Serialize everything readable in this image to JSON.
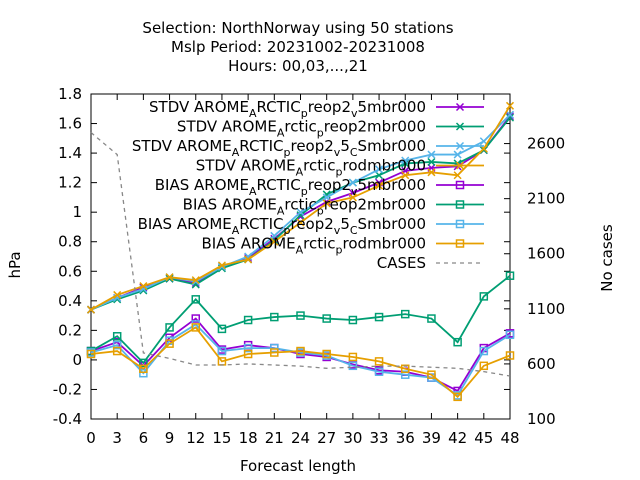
{
  "chart_data": {
    "type": "line",
    "title_lines": [
      "Selection: NorthNorway using    50 stations",
      "Mslp   Period: 20231002-20231008",
      "Hours:  00,03,...,21"
    ],
    "xlabel": "Forecast length",
    "ylabel": "hPa",
    "y2label": "No cases",
    "x": [
      0,
      3,
      6,
      9,
      12,
      15,
      18,
      21,
      24,
      27,
      30,
      33,
      36,
      39,
      42,
      45,
      48
    ],
    "xlim": [
      0,
      48
    ],
    "ylim": [
      -0.4,
      1.8
    ],
    "y2lim": [
      100,
      3050
    ],
    "yticks": [
      "-0.4",
      "-0.2",
      "0",
      "0.2",
      "0.4",
      "0.6",
      "0.8",
      "1",
      "1.2",
      "1.4",
      "1.6",
      "1.8"
    ],
    "y2ticks": [
      "100",
      "600",
      "1100",
      "1600",
      "2100",
      "2600"
    ],
    "xticks": [
      "0",
      "3",
      "6",
      "9",
      "12",
      "15",
      "18",
      "21",
      "24",
      "27",
      "30",
      "33",
      "36",
      "39",
      "42",
      "45",
      "48"
    ],
    "grid": false,
    "legend_position": "top-right",
    "series": [
      {
        "legend_main": "STDV AROME",
        "legend_sub1": "A",
        "legend_mid1": "RCTIC",
        "legend_sub2": "p",
        "legend_mid2": "reop2",
        "legend_sub3": "v",
        "legend_end": "5mbr000",
        "color": "#9400d3",
        "marker": "x",
        "dash": false,
        "axis": "y1",
        "values": [
          0.34,
          0.42,
          0.49,
          0.55,
          0.52,
          0.63,
          0.69,
          0.82,
          0.97,
          1.07,
          1.13,
          1.2,
          1.28,
          1.3,
          1.31,
          1.42,
          1.65
        ]
      },
      {
        "legend_main": "STDV AROME",
        "legend_sub1": "A",
        "legend_mid1": "rctic",
        "legend_sub2": "p",
        "legend_mid2": "reop2mbr000",
        "legend_sub3": "",
        "legend_end": "",
        "color": "#009e73",
        "marker": "x",
        "dash": false,
        "axis": "y1",
        "values": [
          0.34,
          0.41,
          0.47,
          0.55,
          0.51,
          0.62,
          0.68,
          0.81,
          0.98,
          1.12,
          1.2,
          1.25,
          1.33,
          1.34,
          1.33,
          1.42,
          1.64
        ]
      },
      {
        "legend_main": "STDV AROME",
        "legend_sub1": "A",
        "legend_mid1": "RCTIC",
        "legend_sub2": "p",
        "legend_mid2": "reop2",
        "legend_sub3": "v",
        "legend_end": "5",
        "legend_sub4": "C",
        "legend_tail": "Smbr000",
        "color": "#56b4e9",
        "marker": "x",
        "dash": false,
        "axis": "y1",
        "values": [
          0.34,
          0.42,
          0.48,
          0.56,
          0.53,
          0.63,
          0.7,
          0.84,
          1.0,
          1.1,
          1.2,
          1.29,
          1.35,
          1.39,
          1.39,
          1.48,
          1.66
        ]
      },
      {
        "legend_main": "STDV AROME",
        "legend_sub1": "A",
        "legend_mid1": "rctic",
        "legend_sub2": "p",
        "legend_mid2": "rodmbr000",
        "legend_sub3": "",
        "legend_end": "",
        "color": "#e69f00",
        "marker": "x",
        "dash": false,
        "axis": "y1",
        "values": [
          0.34,
          0.44,
          0.5,
          0.56,
          0.54,
          0.64,
          0.68,
          0.8,
          0.93,
          1.06,
          1.1,
          1.18,
          1.25,
          1.27,
          1.25,
          1.43,
          1.72
        ]
      },
      {
        "legend_main": "BIAS AROME",
        "legend_sub1": "A",
        "legend_mid1": "RCTIC",
        "legend_sub2": "p",
        "legend_mid2": "reop2",
        "legend_sub3": "v",
        "legend_end": "5mbr000",
        "color": "#9400d3",
        "marker": "square",
        "dash": false,
        "axis": "y1",
        "values": [
          0.06,
          0.12,
          -0.04,
          0.15,
          0.28,
          0.07,
          0.1,
          0.08,
          0.04,
          0.02,
          -0.03,
          -0.07,
          -0.08,
          -0.12,
          -0.21,
          0.08,
          0.18
        ]
      },
      {
        "legend_main": "BIAS AROME",
        "legend_sub1": "A",
        "legend_mid1": "rctic",
        "legend_sub2": "p",
        "legend_mid2": "reop2mbr000",
        "legend_sub3": "",
        "legend_end": "",
        "color": "#009e73",
        "marker": "square",
        "dash": false,
        "axis": "y1",
        "values": [
          0.06,
          0.16,
          -0.02,
          0.22,
          0.41,
          0.21,
          0.27,
          0.29,
          0.3,
          0.28,
          0.27,
          0.29,
          0.31,
          0.28,
          0.12,
          0.43,
          0.57
        ]
      },
      {
        "legend_main": "BIAS AROME",
        "legend_sub1": "A",
        "legend_mid1": "RCTIC",
        "legend_sub2": "p",
        "legend_mid2": "reop2",
        "legend_sub3": "v",
        "legend_end": "5",
        "legend_sub4": "C",
        "legend_tail": "Smbr000",
        "color": "#56b4e9",
        "marker": "square",
        "dash": false,
        "axis": "y1",
        "values": [
          0.05,
          0.1,
          -0.09,
          0.13,
          0.24,
          0.06,
          0.08,
          0.08,
          0.05,
          0.03,
          -0.04,
          -0.08,
          -0.1,
          -0.12,
          -0.24,
          0.06,
          0.17
        ]
      },
      {
        "legend_main": "BIAS AROME",
        "legend_sub1": "A",
        "legend_mid1": "rctic",
        "legend_sub2": "p",
        "legend_mid2": "rodmbr000",
        "legend_sub3": "",
        "legend_end": "",
        "color": "#e69f00",
        "marker": "square",
        "dash": false,
        "axis": "y1",
        "values": [
          0.04,
          0.06,
          -0.06,
          0.11,
          0.22,
          -0.01,
          0.04,
          0.05,
          0.06,
          0.04,
          0.02,
          -0.01,
          -0.06,
          -0.1,
          -0.25,
          -0.04,
          0.03
        ]
      },
      {
        "legend_main": "CASES",
        "color": "#888888",
        "marker": "none",
        "dash": true,
        "axis": "y2",
        "values": [
          2700,
          2500,
          700,
          650,
          590,
          590,
          600,
          590,
          580,
          560,
          570,
          580,
          580,
          570,
          560,
          530,
          490
        ]
      }
    ]
  }
}
